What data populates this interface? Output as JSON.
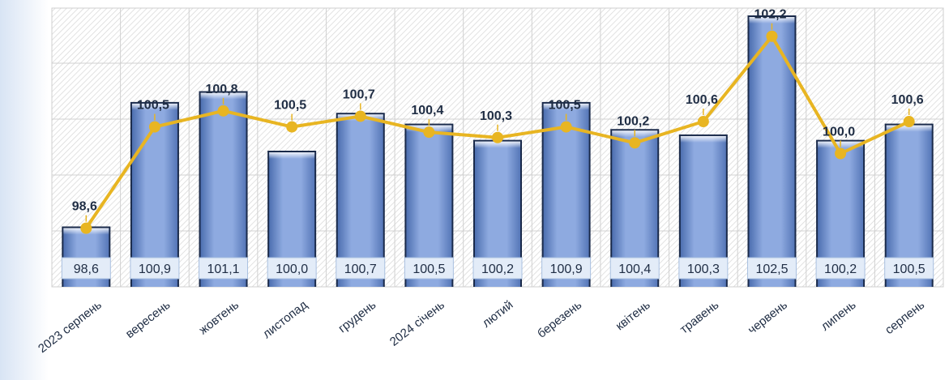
{
  "chart_data": {
    "type": "bar",
    "title": "",
    "xlabel": "",
    "ylabel": "",
    "categories": [
      "2023 серпень",
      "вересень",
      "жовтень",
      "листопад",
      "грудень",
      "2024 січень",
      "лютий",
      "березень",
      "квітень",
      "травень",
      "червень",
      "липень",
      "серпень"
    ],
    "series": [
      {
        "type": "bar",
        "values": [
          98.6,
          100.9,
          101.1,
          100.0,
          100.7,
          100.5,
          100.2,
          100.9,
          100.4,
          100.3,
          102.5,
          100.2,
          100.5
        ],
        "labels": [
          "98,6",
          "100,9",
          "101,1",
          "100,0",
          "100,7",
          "100,5",
          "100,2",
          "100,9",
          "100,4",
          "100,3",
          "102,5",
          "100,2",
          "100,5"
        ]
      },
      {
        "type": "line",
        "values": [
          98.6,
          100.5,
          100.8,
          100.5,
          100.7,
          100.4,
          100.3,
          100.5,
          100.2,
          100.6,
          102.2,
          100.0,
          100.6
        ],
        "labels": [
          "98,6",
          "100,5",
          "100,8",
          "100,5",
          "100,7",
          "100,4",
          "100,3",
          "100,5",
          "100,2",
          "100,6",
          "102,2",
          "100,0",
          "100,6"
        ]
      }
    ],
    "ylim": [
      97.5,
      102.5
    ],
    "grid": true,
    "legend": "none",
    "colors": {
      "bar": "#8aa8df",
      "bar_edge": "#1a2a4a",
      "line": "#e8b522",
      "label_box": "#e3ecf8"
    }
  }
}
